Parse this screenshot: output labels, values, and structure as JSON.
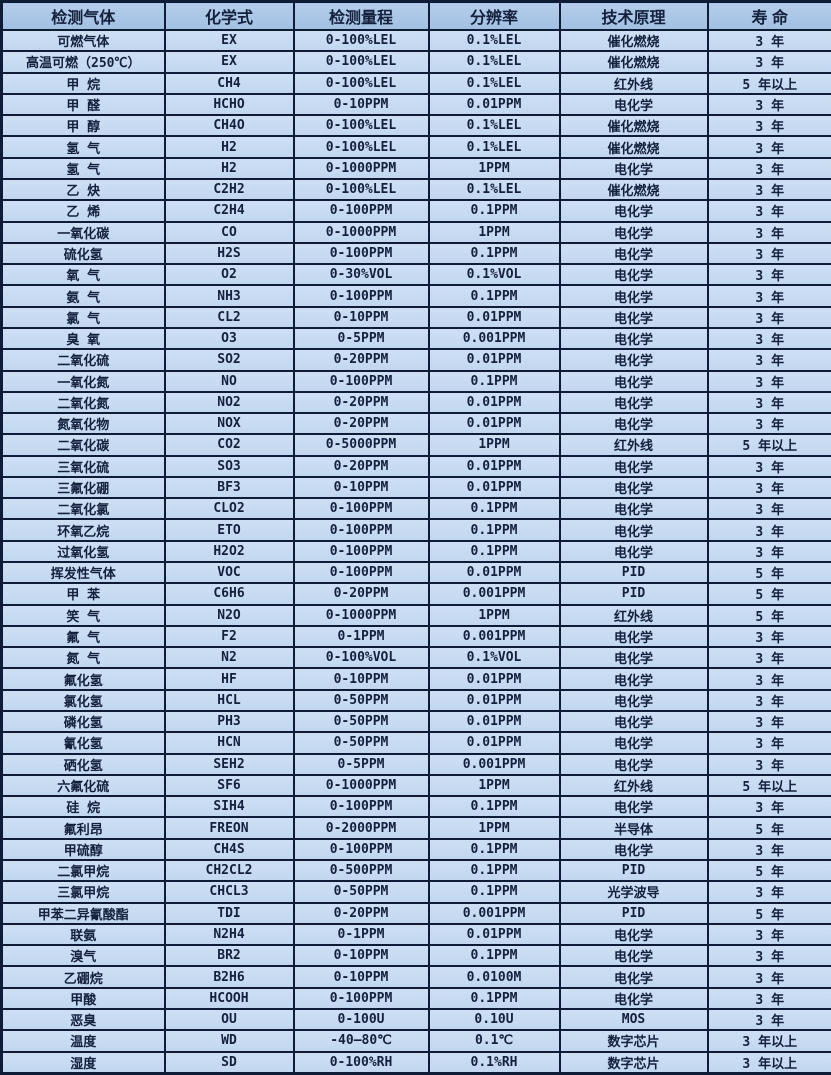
{
  "table": {
    "title": "gas-sensor-specifications",
    "columns": [
      "检测气体",
      "化学式",
      "检测量程",
      "分辨率",
      "技术原理",
      "寿 命"
    ],
    "column_keys": [
      "gas",
      "formula",
      "range",
      "resolution",
      "principle",
      "lifespan"
    ],
    "rows": [
      [
        "可燃气体",
        "EX",
        "0-100%LEL",
        "0.1%LEL",
        "催化燃烧",
        "3 年"
      ],
      [
        "高温可燃（250℃）",
        "EX",
        "0-100%LEL",
        "0.1%LEL",
        "催化燃烧",
        "3 年"
      ],
      [
        "甲 烷",
        "CH4",
        "0-100%LEL",
        "0.1%LEL",
        "红外线",
        "5 年以上"
      ],
      [
        "甲 醛",
        "HCHO",
        "0-10PPM",
        "0.01PPM",
        "电化学",
        "3 年"
      ],
      [
        "甲 醇",
        "CH4O",
        "0-100%LEL",
        "0.1%LEL",
        "催化燃烧",
        "3 年"
      ],
      [
        "氢 气",
        "H2",
        "0-100%LEL",
        "0.1%LEL",
        "催化燃烧",
        "3 年"
      ],
      [
        "氢 气",
        "H2",
        "0-1000PPM",
        "1PPM",
        "电化学",
        "3 年"
      ],
      [
        "乙 炔",
        "C2H2",
        "0-100%LEL",
        "0.1%LEL",
        "催化燃烧",
        "3 年"
      ],
      [
        "乙 烯",
        "C2H4",
        "0-100PPM",
        "0.1PPM",
        "电化学",
        "3 年"
      ],
      [
        "一氧化碳",
        "CO",
        "0-1000PPM",
        "1PPM",
        "电化学",
        "3 年"
      ],
      [
        "硫化氢",
        "H2S",
        "0-100PPM",
        "0.1PPM",
        "电化学",
        "3 年"
      ],
      [
        "氧 气",
        "O2",
        "0-30%VOL",
        "0.1%VOL",
        "电化学",
        "3 年"
      ],
      [
        "氨 气",
        "NH3",
        "0-100PPM",
        "0.1PPM",
        "电化学",
        "3 年"
      ],
      [
        "氯 气",
        "CL2",
        "0-10PPM",
        "0.01PPM",
        "电化学",
        "3 年"
      ],
      [
        "臭 氧",
        "O3",
        "0-5PPM",
        "0.001PPM",
        "电化学",
        "3 年"
      ],
      [
        "二氧化硫",
        "SO2",
        "0-20PPM",
        "0.01PPM",
        "电化学",
        "3 年"
      ],
      [
        "一氧化氮",
        "NO",
        "0-100PPM",
        "0.1PPM",
        "电化学",
        "3 年"
      ],
      [
        "二氧化氮",
        "NO2",
        "0-20PPM",
        "0.01PPM",
        "电化学",
        "3 年"
      ],
      [
        "氮氧化物",
        "NOX",
        "0-20PPM",
        "0.01PPM",
        "电化学",
        "3 年"
      ],
      [
        "二氧化碳",
        "CO2",
        "0-5000PPM",
        "1PPM",
        "红外线",
        "5 年以上"
      ],
      [
        "三氧化硫",
        "SO3",
        "0-20PPM",
        "0.01PPM",
        "电化学",
        "3 年"
      ],
      [
        "三氟化硼",
        "BF3",
        "0-10PPM",
        "0.01PPM",
        "电化学",
        "3 年"
      ],
      [
        "二氧化氯",
        "CLO2",
        "0-100PPM",
        "0.1PPM",
        "电化学",
        "3 年"
      ],
      [
        "环氧乙烷",
        "ETO",
        "0-100PPM",
        "0.1PPM",
        "电化学",
        "3 年"
      ],
      [
        "过氧化氢",
        "H2O2",
        "0-100PPM",
        "0.1PPM",
        "电化学",
        "3 年"
      ],
      [
        "挥发性气体",
        "VOC",
        "0-100PPM",
        "0.01PPM",
        "PID",
        "5 年"
      ],
      [
        "甲 苯",
        "C6H6",
        "0-20PPM",
        "0.001PPM",
        "PID",
        "5 年"
      ],
      [
        "笑 气",
        "N2O",
        "0-1000PPM",
        "1PPM",
        "红外线",
        "5 年"
      ],
      [
        "氟 气",
        "F2",
        "0-1PPM",
        "0.001PPM",
        "电化学",
        "3 年"
      ],
      [
        "氮 气",
        "N2",
        "0-100%VOL",
        "0.1%VOL",
        "电化学",
        "3 年"
      ],
      [
        "氟化氢",
        "HF",
        "0-10PPM",
        "0.01PPM",
        "电化学",
        "3 年"
      ],
      [
        "氯化氢",
        "HCL",
        "0-50PPM",
        "0.01PPM",
        "电化学",
        "3 年"
      ],
      [
        "磷化氢",
        "PH3",
        "0-50PPM",
        "0.01PPM",
        "电化学",
        "3 年"
      ],
      [
        "氰化氢",
        "HCN",
        "0-50PPM",
        "0.01PPM",
        "电化学",
        "3 年"
      ],
      [
        "硒化氢",
        "SEH2",
        "0-5PPM",
        "0.001PPM",
        "电化学",
        "3 年"
      ],
      [
        "六氟化硫",
        "SF6",
        "0-1000PPM",
        "1PPM",
        "红外线",
        "5 年以上"
      ],
      [
        "硅 烷",
        "SIH4",
        "0-100PPM",
        "0.1PPM",
        "电化学",
        "3 年"
      ],
      [
        "氟利昂",
        "FREON",
        "0-2000PPM",
        "1PPM",
        "半导体",
        "5 年"
      ],
      [
        "甲硫醇",
        "CH4S",
        "0-100PPM",
        "0.1PPM",
        "电化学",
        "3 年"
      ],
      [
        "二氯甲烷",
        "CH2CL2",
        "0-500PPM",
        "0.1PPM",
        "PID",
        "5 年"
      ],
      [
        "三氯甲烷",
        "CHCL3",
        "0-50PPM",
        "0.1PPM",
        "光学波导",
        "3 年"
      ],
      [
        "甲苯二异氰酸酯",
        "TDI",
        "0-20PPM",
        "0.001PPM",
        "PID",
        "5 年"
      ],
      [
        "联氨",
        "N2H4",
        "0-1PPM",
        "0.01PPM",
        "电化学",
        "3 年"
      ],
      [
        "溴气",
        "BR2",
        "0-10PPM",
        "0.1PPM",
        "电化学",
        "3 年"
      ],
      [
        "乙硼烷",
        "B2H6",
        "0-10PPM",
        "0.0100M",
        "电化学",
        "3 年"
      ],
      [
        "甲酸",
        "HCOOH",
        "0-100PPM",
        "0.1PPM",
        "电化学",
        "3 年"
      ],
      [
        "恶臭",
        "OU",
        "0-100U",
        "0.10U",
        "MOS",
        "3 年"
      ],
      [
        "温度",
        "WD",
        "-40—80℃",
        "0.1℃",
        "数字芯片",
        "3 年以上"
      ],
      [
        "湿度",
        "SD",
        "0-100%RH",
        "0.1%RH",
        "数字芯片",
        "3 年以上"
      ]
    ]
  },
  "colors": {
    "header_background": "#a9c5e8",
    "row_background": "#c6daf2",
    "border": "#0e1c38",
    "text": "#14213d"
  }
}
